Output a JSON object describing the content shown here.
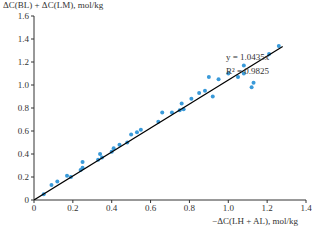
{
  "chart_data": {
    "type": "scatter",
    "x_label": "−ΔC(LH + AL), mol/kg",
    "y_label": "ΔC(BL) + ΔC(LM), mol/kg",
    "xlim": [
      0,
      1.4
    ],
    "xticks": [
      0,
      0.2,
      0.4,
      0.6,
      0.8,
      {
        "value": 1,
        "label": "1.0"
      },
      1.2,
      1.4
    ],
    "ylim": [
      0,
      1.6
    ],
    "yticks": [
      0,
      0.2,
      0.4,
      0.6,
      0.8,
      {
        "value": 1,
        "label": "1.0"
      },
      1.2,
      1.4,
      1.6
    ],
    "grid": false,
    "annotations": [
      {
        "text": "y = 1.0435x"
      },
      {
        "text": "R² = 0.9825"
      }
    ],
    "series": [
      {
        "type": "scatter",
        "marker": "circle",
        "color": "#3a9ad9",
        "x": [
          0.05,
          0.09,
          0.12,
          0.17,
          0.19,
          0.24,
          0.25,
          0.25,
          0.33,
          0.34,
          0.35,
          0.4,
          0.41,
          0.44,
          0.48,
          0.5,
          0.53,
          0.55,
          0.64,
          0.66,
          0.71,
          0.75,
          0.76,
          0.77,
          0.81,
          0.85,
          0.88,
          0.9,
          0.92,
          0.95,
          1.0,
          1.05,
          1.08,
          1.08,
          1.12,
          1.13,
          1.21,
          1.26
        ],
        "values": [
          0.05,
          0.13,
          0.16,
          0.21,
          0.2,
          0.26,
          0.28,
          0.33,
          0.35,
          0.4,
          0.37,
          0.42,
          0.45,
          0.48,
          0.5,
          0.57,
          0.59,
          0.61,
          0.68,
          0.76,
          0.76,
          0.78,
          0.84,
          0.79,
          0.88,
          0.93,
          0.95,
          1.07,
          0.9,
          1.05,
          1.1,
          1.07,
          1.1,
          1.17,
          0.98,
          1.02,
          1.27,
          1.34
        ]
      },
      {
        "type": "line",
        "line_style": "solid",
        "color": "#000000",
        "x": [
          0,
          1.28
        ],
        "values": [
          0,
          1.3357
        ]
      }
    ]
  }
}
